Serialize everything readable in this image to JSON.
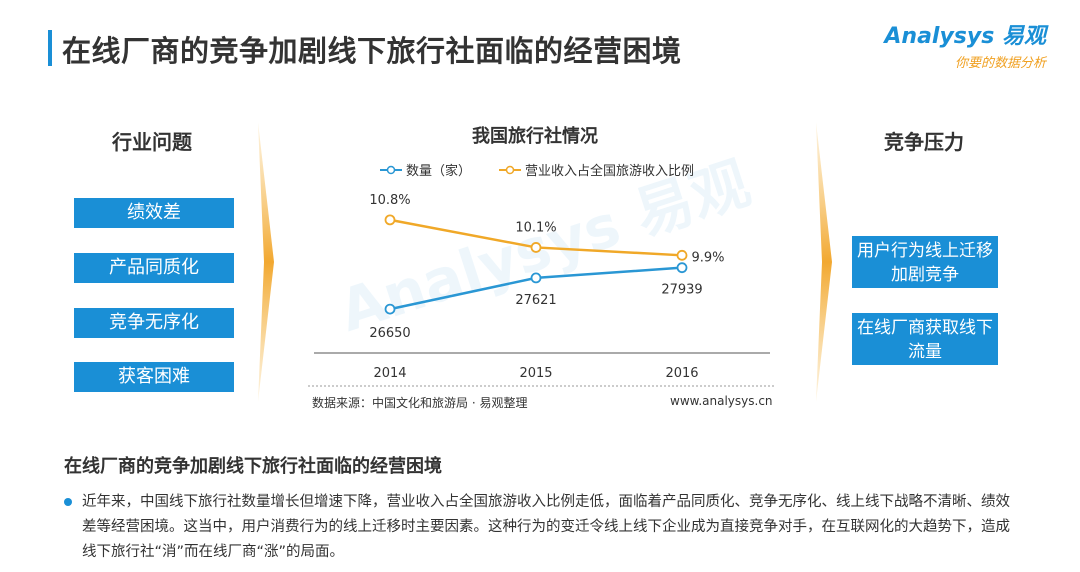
{
  "header": {
    "title": "在线厂商的竞争加剧线下旅行社面临的经营困境",
    "logo_main": "Analysys 易观",
    "logo_sub": "你要的数据分析"
  },
  "left": {
    "title": "行业问题",
    "items": [
      "绩效差",
      "产品同质化",
      "竞争无序化",
      "获客困难"
    ]
  },
  "right": {
    "title": "竞争压力",
    "items": [
      "用户行为线上迁移加剧竞争",
      "在线厂商获取线下流量"
    ]
  },
  "chart_data": {
    "type": "line",
    "title": "我国旅行社情况",
    "categories": [
      "2014",
      "2015",
      "2016"
    ],
    "series": [
      {
        "name": "数量（家）",
        "values": [
          26650,
          27621,
          27939
        ],
        "labels": [
          "26650",
          "27621",
          "27939"
        ],
        "color": "#2a97d4"
      },
      {
        "name": "营业收入占全国旅游收入比例",
        "values": [
          10.8,
          10.1,
          9.9
        ],
        "labels": [
          "10.8%",
          "10.1%",
          "9.9%"
        ],
        "color": "#f0a828"
      }
    ],
    "source": "数据来源：中国文化和旅游局 · 易观整理",
    "site": "www.analysys.cn"
  },
  "summary": {
    "title": "在线厂商的竞争加剧线下旅行社面临的经营困境",
    "text": "近年来，中国线下旅行社数量增长但增速下降，营业收入占全国旅游收入比例走低，面临着产品同质化、竞争无序化、线上线下战略不清晰、绩效差等经营困境。这当中，用户消费行为的线上迁移时主要因素。这种行为的变迁令线上线下企业成为直接竞争对手，在互联网化的大趋势下，造成线下旅行社“消”而在线厂商“涨”的局面。"
  }
}
